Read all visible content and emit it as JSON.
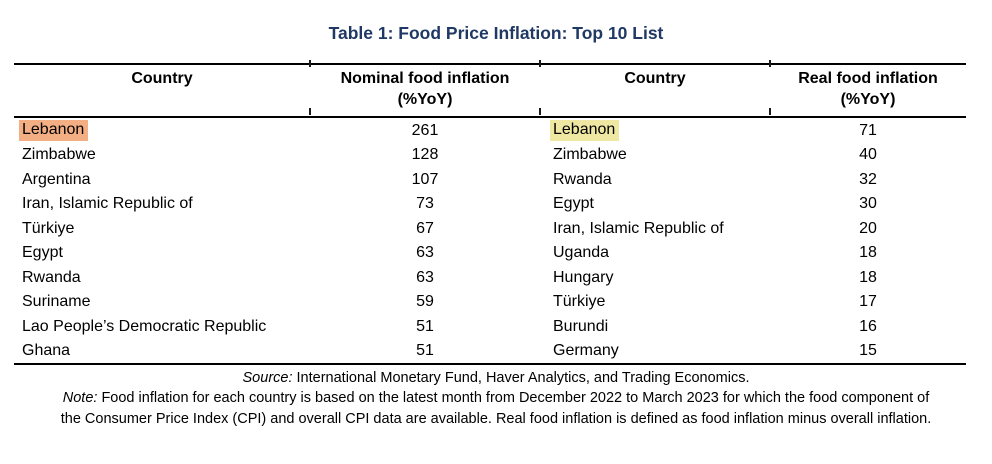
{
  "title": "Table 1: Food Price Inflation: Top 10 List",
  "colors": {
    "title_blue": "#1F3864",
    "nominal_highlight": "#F4AE84",
    "real_highlight": "#EFE8A3",
    "border": "#000000"
  },
  "table": {
    "headers": {
      "country1": "Country",
      "nominal_line1": "Nominal food inflation",
      "nominal_line2": "(%YoY)",
      "country2": "Country",
      "real_line1": "Real food inflation",
      "real_line2": "(%YoY)"
    },
    "rows": [
      {
        "nominal_country": "Lebanon",
        "nominal_value": "261",
        "nominal_highlight": true,
        "real_country": "Lebanon",
        "real_value": "71",
        "real_highlight": true
      },
      {
        "nominal_country": "Zimbabwe",
        "nominal_value": "128",
        "nominal_highlight": false,
        "real_country": "Zimbabwe",
        "real_value": "40",
        "real_highlight": false
      },
      {
        "nominal_country": "Argentina",
        "nominal_value": "107",
        "nominal_highlight": false,
        "real_country": "Rwanda",
        "real_value": "32",
        "real_highlight": false
      },
      {
        "nominal_country": "Iran, Islamic Republic of",
        "nominal_value": "73",
        "nominal_highlight": false,
        "real_country": "Egypt",
        "real_value": "30",
        "real_highlight": false
      },
      {
        "nominal_country": "Türkiye",
        "nominal_value": "67",
        "nominal_highlight": false,
        "real_country": "Iran, Islamic Republic of",
        "real_value": "20",
        "real_highlight": false
      },
      {
        "nominal_country": "Egypt",
        "nominal_value": "63",
        "nominal_highlight": false,
        "real_country": "Uganda",
        "real_value": "18",
        "real_highlight": false
      },
      {
        "nominal_country": "Rwanda",
        "nominal_value": "63",
        "nominal_highlight": false,
        "real_country": "Hungary",
        "real_value": "18",
        "real_highlight": false
      },
      {
        "nominal_country": "Suriname",
        "nominal_value": "59",
        "nominal_highlight": false,
        "real_country": "Türkiye",
        "real_value": "17",
        "real_highlight": false
      },
      {
        "nominal_country": "Lao People’s Democratic Republic",
        "nominal_value": "51",
        "nominal_highlight": false,
        "real_country": "Burundi",
        "real_value": "16",
        "real_highlight": false
      },
      {
        "nominal_country": "Ghana",
        "nominal_value": "51",
        "nominal_highlight": false,
        "real_country": "Germany",
        "real_value": "15",
        "real_highlight": false
      }
    ]
  },
  "footer": {
    "source_label": "Source:",
    "source_text": " International Monetary Fund, Haver Analytics, and Trading Economics.",
    "note_label": "Note:",
    "note_line1": " Food inflation for each country is based on the latest month from December 2022 to March 2023 for which the food component of",
    "note_line2": "the Consumer Price Index (CPI) and overall CPI data are available. Real food inflation is defined as food inflation minus overall inflation."
  }
}
